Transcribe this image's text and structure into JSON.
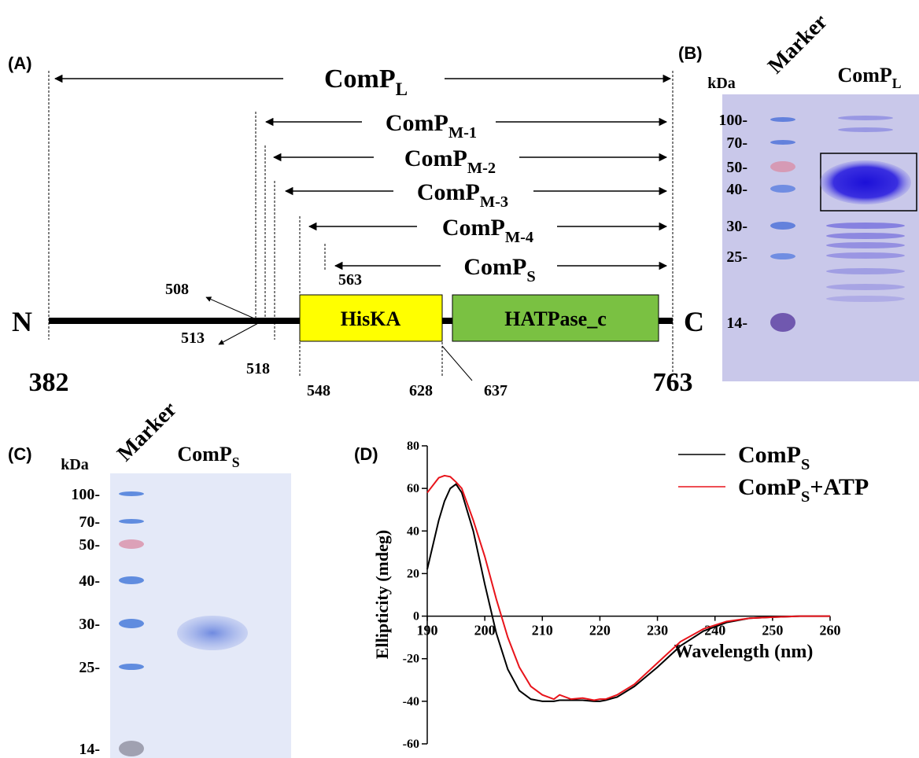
{
  "panel_a": {
    "label": "(A)",
    "constructs": [
      {
        "name": "ComP",
        "sub": "L"
      },
      {
        "name": "ComP",
        "sub": "M-1"
      },
      {
        "name": "ComP",
        "sub": "M-2"
      },
      {
        "name": "ComP",
        "sub": "M-3"
      },
      {
        "name": "ComP",
        "sub": "M-4"
      },
      {
        "name": "ComP",
        "sub": "S"
      }
    ],
    "n_terminus": "N",
    "c_terminus": "C",
    "domains": [
      "HisKA",
      "HATPase_c"
    ],
    "positions": [
      "382",
      "508",
      "513",
      "518",
      "548",
      "563",
      "628",
      "637",
      "763"
    ]
  },
  "panel_b": {
    "label": "(B)",
    "marker": "Marker",
    "sample": {
      "name": "ComP",
      "sub": "L"
    },
    "unit": "kDa",
    "ladder": [
      "100-",
      "70-",
      "50-",
      "40-",
      "30-",
      "25-",
      "14-"
    ]
  },
  "panel_c": {
    "label": "(C)",
    "marker": "Marker",
    "sample": {
      "name": "ComP",
      "sub": "S"
    },
    "unit": "kDa",
    "ladder": [
      "100-",
      "70-",
      "50-",
      "40-",
      "30-",
      "25-",
      "14-"
    ]
  },
  "chart_data": {
    "type": "line",
    "label": "(D)",
    "ylabel": "Ellipticity (mdeg)",
    "xlabel": "Wavelength (nm)",
    "xlim": [
      190,
      260
    ],
    "ylim": [
      -60,
      80
    ],
    "xticks": [
      190,
      200,
      210,
      220,
      230,
      240,
      250,
      260
    ],
    "yticks": [
      -60,
      -40,
      -20,
      0,
      20,
      40,
      60,
      80
    ],
    "x": [
      190,
      192,
      193,
      194,
      195,
      196,
      198,
      200,
      202,
      204,
      206,
      208,
      210,
      211,
      212,
      213,
      215,
      217,
      219,
      220,
      221,
      223,
      226,
      230,
      234,
      238,
      242,
      246,
      250,
      255,
      260
    ],
    "series": [
      {
        "name": "ComP",
        "name_sub": "S",
        "color": "#000000",
        "values": [
          22,
          45,
          54,
          60,
          62,
          58,
          40,
          15,
          -8,
          -25,
          -35,
          -39,
          -40,
          -40,
          -40,
          -39.5,
          -39.5,
          -39.5,
          -40,
          -40,
          -39.5,
          -38,
          -33,
          -24,
          -14,
          -7,
          -3,
          -1,
          -0.5,
          0,
          0
        ]
      },
      {
        "name": "ComP",
        "name_sub": "S",
        "name_suffix": "+ATP",
        "color": "#e8141b",
        "values": [
          58,
          65,
          66,
          65.5,
          63,
          60,
          45,
          28,
          8,
          -10,
          -24,
          -33,
          -37,
          -38,
          -39,
          -37,
          -39,
          -38.5,
          -39.5,
          -39,
          -39,
          -37,
          -32,
          -22,
          -12,
          -6,
          -2.5,
          -1,
          -0.5,
          0,
          0
        ]
      }
    ]
  }
}
